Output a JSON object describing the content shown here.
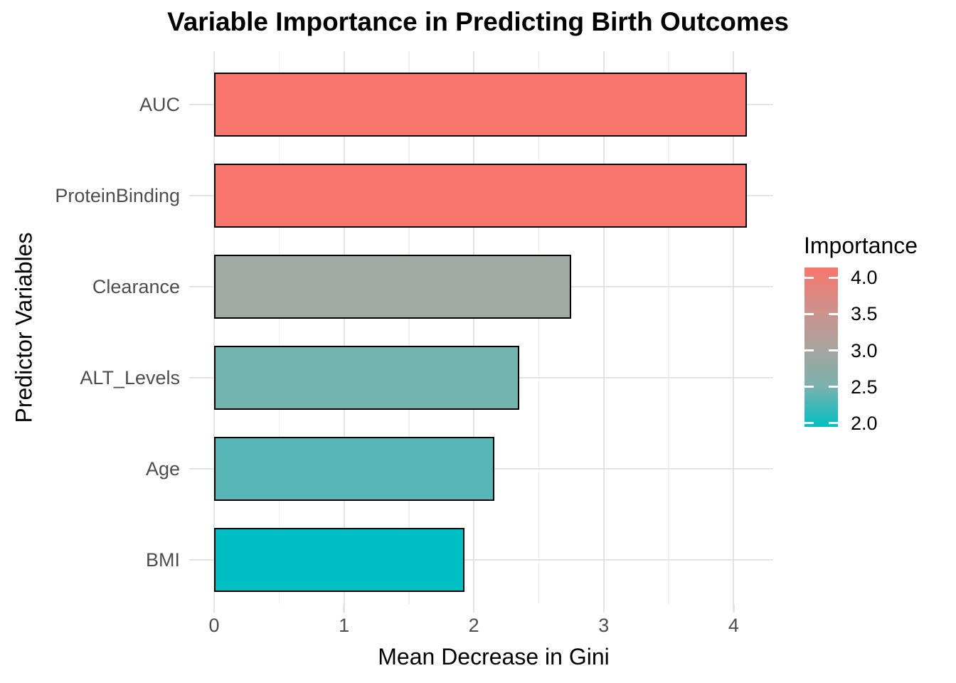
{
  "chart_data": {
    "type": "bar",
    "orientation": "horizontal",
    "title": "Variable Importance in Predicting Birth Outcomes",
    "xlabel": "Mean Decrease in Gini",
    "ylabel": "Predictor Variables",
    "categories": [
      "AUC",
      "ProteinBinding",
      "Clearance",
      "ALT_Levels",
      "Age",
      "BMI"
    ],
    "values": [
      4.1,
      4.1,
      2.75,
      2.35,
      2.16,
      1.93
    ],
    "bar_colors": [
      "#F8766D",
      "#F8766D",
      "#A0A9A2",
      "#73B4B0",
      "#59B6B7",
      "#00BFC4"
    ],
    "bar_border_color": "#000000",
    "xlim": [
      0,
      4.3
    ],
    "x_ticks": [
      "0",
      "1",
      "2",
      "3",
      "4"
    ],
    "x_minor_ticks": [
      0.5,
      1.5,
      2.5,
      3.5
    ],
    "grid": true,
    "legend": {
      "title": "Importance",
      "position": "right",
      "type": "gradient-colorbar",
      "tick_labels": [
        "4.0",
        "3.5",
        "3.0",
        "2.5",
        "2.0"
      ],
      "tick_values": [
        4.0,
        3.5,
        3.0,
        2.5,
        2.0
      ],
      "bar_value_range_top_to_bottom": [
        4.14,
        1.95
      ],
      "gradient_stops": [
        "#F8766D 0%",
        "#D0908A 26%",
        "#ABA39D 50%",
        "#79B1AE 75%",
        "#00BFC4 100%"
      ],
      "high_color": "#F8766D",
      "mid_color": "#ABA39D",
      "low_color": "#00BFC4"
    },
    "style": {
      "axis_text_color": "#4D4D4D",
      "title_color": "#000000",
      "background": "#FFFFFF"
    }
  }
}
